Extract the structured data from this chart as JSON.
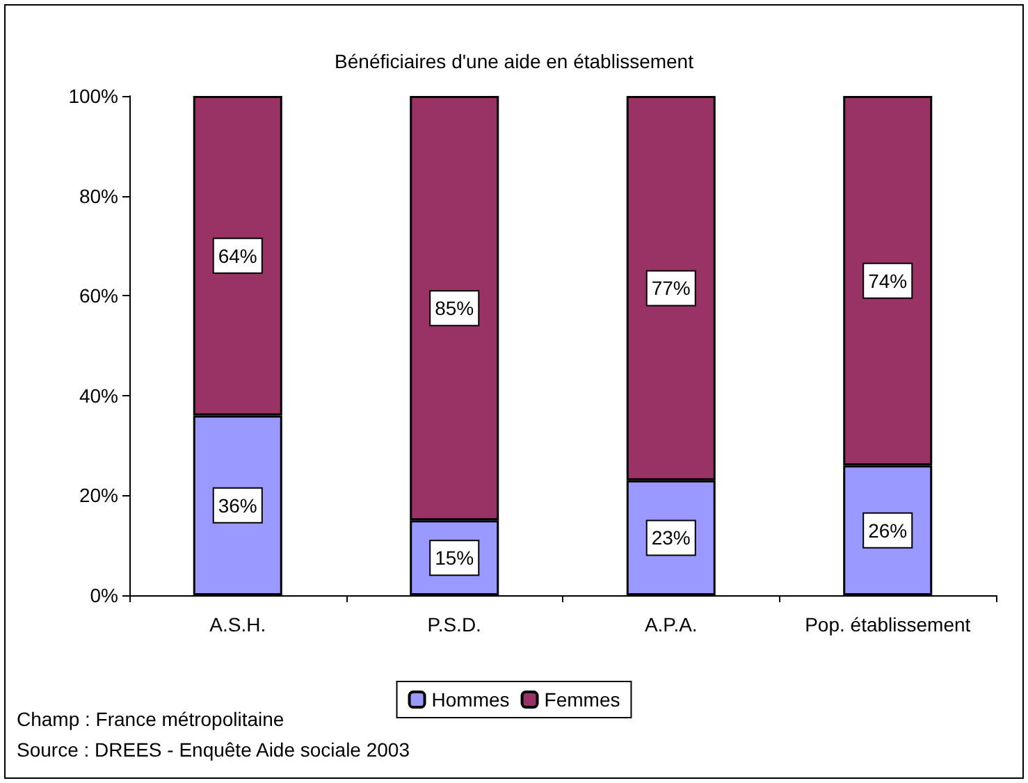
{
  "chart_data": {
    "type": "bar",
    "title": "Bénéficiaires d'une aide en établissement",
    "categories": [
      "A.S.H.",
      "P.S.D.",
      "A.P.A.",
      "Pop. établissement"
    ],
    "stacked": true,
    "series": [
      {
        "name": "Hommes",
        "color": "#9999ff",
        "values": [
          36,
          15,
          23,
          26
        ],
        "value_labels": [
          "36%",
          "15%",
          "23%",
          "26%"
        ]
      },
      {
        "name": "Femmes",
        "color": "#993366",
        "values": [
          64,
          85,
          77,
          74
        ],
        "value_labels": [
          "64%",
          "85%",
          "77%",
          "74%"
        ]
      }
    ],
    "ylim": [
      0,
      100
    ],
    "yticks": [
      {
        "value": 0,
        "label": "0%"
      },
      {
        "value": 20,
        "label": "20%"
      },
      {
        "value": 40,
        "label": "40%"
      },
      {
        "value": 60,
        "label": "60%"
      },
      {
        "value": 80,
        "label": "80%"
      },
      {
        "value": 100,
        "label": "100%"
      }
    ],
    "grid": false,
    "legend": "bottom",
    "annotations": [
      "Champ : France métropolitaine",
      "Source : DREES - Enquête Aide sociale 2003"
    ]
  }
}
